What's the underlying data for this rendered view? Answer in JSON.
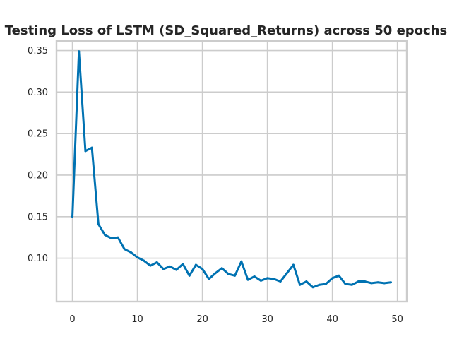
{
  "chart_data": {
    "type": "line",
    "title": "Testing Loss of LSTM (SD_Squared_Returns) across 50 epochs",
    "xlabel": "",
    "ylabel": "",
    "xlim": [
      -2.45,
      51.45
    ],
    "ylim": [
      0.0478,
      0.3615
    ],
    "xticks": [
      0,
      10,
      20,
      30,
      40,
      50
    ],
    "yticks": [
      0.1,
      0.15,
      0.2,
      0.25,
      0.3,
      0.35
    ],
    "xtick_labels": [
      "0",
      "10",
      "20",
      "30",
      "40",
      "50"
    ],
    "ytick_labels": [
      "0.10",
      "0.15",
      "0.20",
      "0.25",
      "0.30",
      "0.35"
    ],
    "grid": true,
    "legend": "none",
    "colors": {
      "series": "#0072b2",
      "grid": "#cccccc",
      "text": "#262626",
      "background": "#ffffff"
    },
    "series": [
      {
        "x": [
          0,
          1,
          2,
          3,
          4,
          5,
          6,
          7,
          8,
          9,
          10,
          11,
          12,
          13,
          14,
          15,
          16,
          17,
          18,
          19,
          20,
          21,
          22,
          23,
          24,
          25,
          26,
          27,
          28,
          29,
          30,
          31,
          32,
          33,
          34,
          35,
          36,
          37,
          38,
          39,
          40,
          41,
          42,
          43,
          44,
          45,
          46,
          47,
          48,
          49
        ],
        "values": [
          0.15,
          0.349,
          0.229,
          0.233,
          0.141,
          0.128,
          0.124,
          0.125,
          0.111,
          0.107,
          0.101,
          0.097,
          0.091,
          0.095,
          0.087,
          0.09,
          0.086,
          0.093,
          0.079,
          0.092,
          0.087,
          0.075,
          0.082,
          0.088,
          0.081,
          0.079,
          0.096,
          0.074,
          0.078,
          0.073,
          0.076,
          0.075,
          0.072,
          0.082,
          0.092,
          0.068,
          0.072,
          0.065,
          0.068,
          0.069,
          0.076,
          0.079,
          0.069,
          0.068,
          0.072,
          0.072,
          0.07,
          0.071,
          0.07,
          0.071
        ]
      }
    ]
  }
}
